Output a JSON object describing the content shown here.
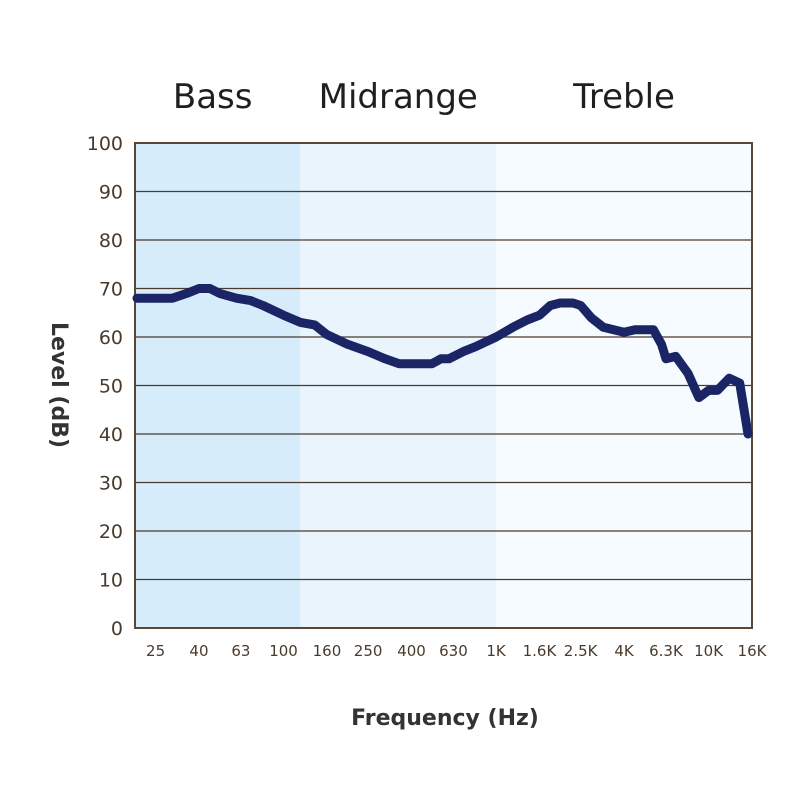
{
  "chart_data": {
    "type": "line",
    "title": "",
    "xlabel": "Frequency (Hz)",
    "ylabel": "Level (dB)",
    "ylim": [
      0,
      100
    ],
    "y_ticks": [
      "0",
      "10",
      "20",
      "30",
      "40",
      "50",
      "60",
      "70",
      "80",
      "90",
      "100"
    ],
    "x_tick_labels": [
      "25",
      "40",
      "63",
      "100",
      "160",
      "250",
      "400",
      "630",
      "1K",
      "1.6K",
      "2.5K",
      "4K",
      "6.3K",
      "10K",
      "16K"
    ],
    "grid": "horizontal",
    "bands": [
      {
        "name": "Bass",
        "from": "20",
        "to": "120",
        "color": "#d7ecfb"
      },
      {
        "name": "Midrange",
        "from": "120",
        "to": "1K",
        "color": "#e9f4fd"
      },
      {
        "name": "Treble",
        "from": "1K",
        "to": "20K",
        "color": "#f6fbff"
      }
    ],
    "line_color": "#1b2566",
    "series": [
      {
        "x": [
          20,
          25,
          30,
          35,
          40,
          45,
          50,
          60,
          70,
          80,
          100,
          120,
          140,
          160,
          200,
          250,
          300,
          350,
          400,
          500,
          550,
          600,
          700,
          800,
          1000,
          1200,
          1400,
          1600,
          1800,
          2000,
          2300,
          2500,
          2800,
          3200,
          4000,
          4500,
          5000,
          5500,
          6000,
          6300,
          7000,
          8000,
          9000,
          10000,
          11000,
          12500,
          14000,
          16000
        ],
        "y": [
          68,
          68,
          68,
          69,
          70,
          70,
          69,
          68,
          67.5,
          66.5,
          64.5,
          63,
          62.5,
          60.5,
          58.5,
          57,
          55.5,
          54.5,
          54.5,
          54.5,
          55.5,
          55.5,
          57,
          58,
          60,
          62,
          63.5,
          64.5,
          66.5,
          67,
          67,
          66.5,
          64,
          62,
          61,
          61.5,
          61.5,
          61.5,
          58.5,
          55.5,
          56,
          52.5,
          47.5,
          49,
          49,
          51.5,
          50.5,
          40
        ]
      }
    ]
  }
}
